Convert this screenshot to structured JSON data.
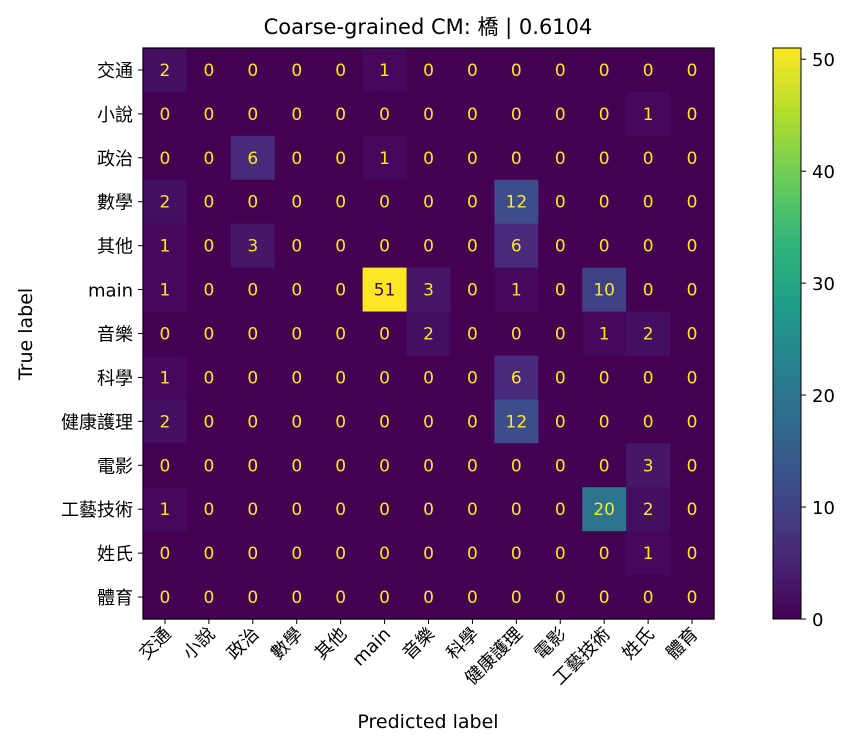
{
  "chart_data": {
    "type": "heatmap",
    "title": "Coarse-grained CM: 橋 | 0.6104",
    "xlabel": "Predicted label",
    "ylabel": "True label",
    "labels": [
      "交通",
      "小說",
      "政治",
      "數學",
      "其他",
      "main",
      "音樂",
      "科學",
      "健康護理",
      "電影",
      "工藝技術",
      "姓氏",
      "體育"
    ],
    "matrix": [
      [
        2,
        0,
        0,
        0,
        0,
        1,
        0,
        0,
        0,
        0,
        0,
        0,
        0
      ],
      [
        0,
        0,
        0,
        0,
        0,
        0,
        0,
        0,
        0,
        0,
        0,
        1,
        0
      ],
      [
        0,
        0,
        6,
        0,
        0,
        1,
        0,
        0,
        0,
        0,
        0,
        0,
        0
      ],
      [
        2,
        0,
        0,
        0,
        0,
        0,
        0,
        0,
        12,
        0,
        0,
        0,
        0
      ],
      [
        1,
        0,
        3,
        0,
        0,
        0,
        0,
        0,
        6,
        0,
        0,
        0,
        0
      ],
      [
        1,
        0,
        0,
        0,
        0,
        51,
        3,
        0,
        1,
        0,
        10,
        0,
        0
      ],
      [
        0,
        0,
        0,
        0,
        0,
        0,
        2,
        0,
        0,
        0,
        1,
        2,
        0
      ],
      [
        1,
        0,
        0,
        0,
        0,
        0,
        0,
        0,
        6,
        0,
        0,
        0,
        0
      ],
      [
        2,
        0,
        0,
        0,
        0,
        0,
        0,
        0,
        12,
        0,
        0,
        0,
        0
      ],
      [
        0,
        0,
        0,
        0,
        0,
        0,
        0,
        0,
        0,
        0,
        0,
        3,
        0
      ],
      [
        1,
        0,
        0,
        0,
        0,
        0,
        0,
        0,
        0,
        0,
        20,
        2,
        0
      ],
      [
        0,
        0,
        0,
        0,
        0,
        0,
        0,
        0,
        0,
        0,
        0,
        1,
        0
      ],
      [
        0,
        0,
        0,
        0,
        0,
        0,
        0,
        0,
        0,
        0,
        0,
        0,
        0
      ]
    ],
    "colormap": "viridis",
    "vmin": 0,
    "vmax": 51,
    "colorbar_ticks": [
      0,
      10,
      20,
      30,
      40,
      50
    ],
    "text_color_low": "#fde725",
    "text_color_high": "#440154"
  }
}
